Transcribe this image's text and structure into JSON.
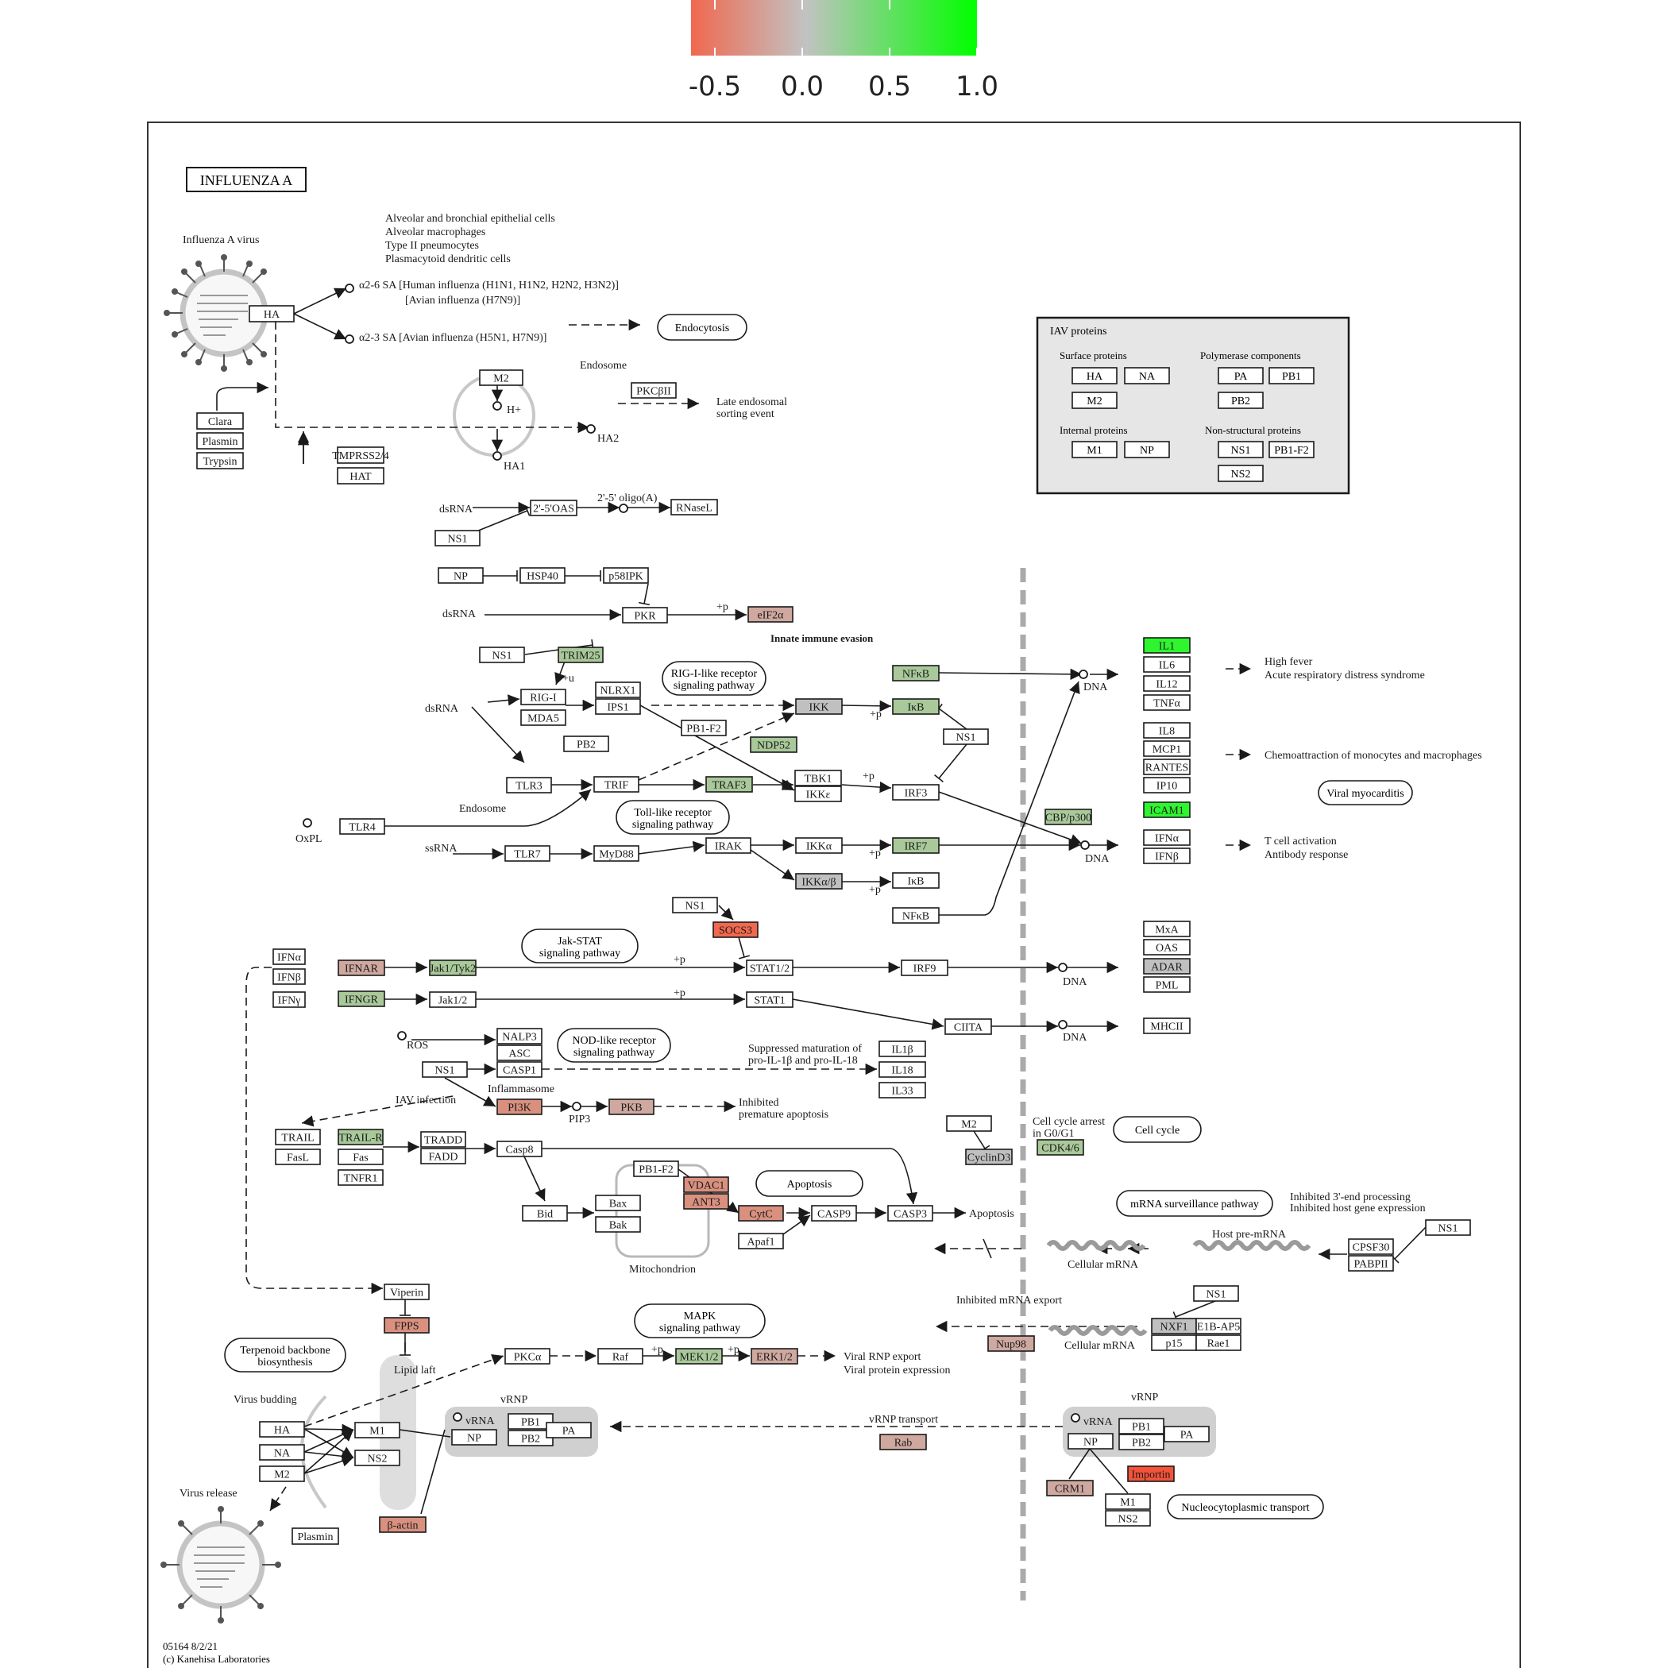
{
  "scale": {
    "ticks": [
      "-0.5",
      "0.0",
      "0.5",
      "1.0"
    ],
    "colors": {
      "low": "#f0684f",
      "mid": "#c2c2c2",
      "high": "#00ff00"
    }
  },
  "colors": {
    "white": "#ffffff",
    "gray": "#c0c0c0",
    "lightgreen": "#a9c99a",
    "green": "#2ff52f",
    "midgreen": "#7fd66b",
    "pink": "#cfa8a0",
    "salmon": "#d9907f",
    "red": "#f0684f",
    "brightred": "#f4533a",
    "panel": "#e6e6e6",
    "blob": "#d0d0d0",
    "line": "#1a1a1a"
  },
  "title": "INFLUENZA A",
  "footer": [
    "05164 8/2/21",
    "(c) Kanehisa Laboratories"
  ],
  "iav_panel": {
    "title": "IAV proteins",
    "groups": [
      {
        "label": "Surface proteins",
        "items": [
          "HA",
          "NA",
          "M2"
        ]
      },
      {
        "label": "Polymerase components",
        "items": [
          "PA",
          "PB1",
          "PB2"
        ]
      },
      {
        "label": "Internal proteins",
        "items": [
          "M1",
          "NP"
        ]
      },
      {
        "label": "Non-structural proteins",
        "items": [
          "NS1",
          "PB1-F2",
          "NS2"
        ]
      }
    ]
  },
  "pathway_labels": [
    "Endocytosis",
    "RIG-I-like receptor signaling pathway",
    "Toll-like receptor signaling pathway",
    "Jak-STAT signaling pathway",
    "NOD-like receptor signaling pathway",
    "Apoptosis",
    "Cell cycle",
    "mRNA surveillance pathway",
    "MAPK signaling pathway",
    "Terpenoid backbone biosynthesis",
    "Viral myocarditis",
    "Nucleocytoplasmic transport"
  ],
  "nodes": [
    {
      "id": "n-ha",
      "label": "HA",
      "fill": "white"
    },
    {
      "id": "n-clara",
      "label": "Clara",
      "fill": "white"
    },
    {
      "id": "n-plasmin",
      "label": "Plasmin",
      "fill": "white"
    },
    {
      "id": "n-trypsin",
      "label": "Trypsin",
      "fill": "white"
    },
    {
      "id": "n-tmprss2",
      "label": "TMPRSS2/4",
      "fill": "white"
    },
    {
      "id": "n-hat",
      "label": "HAT",
      "fill": "white"
    },
    {
      "id": "n-m2",
      "label": "M2",
      "fill": "white"
    },
    {
      "id": "n-pkcb",
      "label": "PKCβII",
      "fill": "white"
    },
    {
      "id": "n-oas",
      "label": "2'-5'OAS",
      "fill": "white"
    },
    {
      "id": "n-rnasel",
      "label": "RNaseL",
      "fill": "white"
    },
    {
      "id": "n-ns1a",
      "label": "NS1",
      "fill": "white"
    },
    {
      "id": "n-np",
      "label": "NP",
      "fill": "white"
    },
    {
      "id": "n-hsp40",
      "label": "HSP40",
      "fill": "white"
    },
    {
      "id": "n-p58",
      "label": "p58IPK",
      "fill": "white"
    },
    {
      "id": "n-pkr",
      "label": "PKR",
      "fill": "white"
    },
    {
      "id": "n-eif2a",
      "label": "eIF2α",
      "fill": "pink"
    },
    {
      "id": "n-ns1b",
      "label": "NS1",
      "fill": "white"
    },
    {
      "id": "n-trim25",
      "label": "TRIM25",
      "fill": "lightgreen"
    },
    {
      "id": "n-rigi",
      "label": "RIG-I",
      "fill": "white"
    },
    {
      "id": "n-mda5",
      "label": "MDA5",
      "fill": "white"
    },
    {
      "id": "n-nlrx1",
      "label": "NLRX1",
      "fill": "white"
    },
    {
      "id": "n-ips1",
      "label": "IPS1",
      "fill": "white"
    },
    {
      "id": "n-pb2",
      "label": "PB2",
      "fill": "white"
    },
    {
      "id": "n-pb1f2",
      "label": "PB1-F2",
      "fill": "white"
    },
    {
      "id": "n-ikk",
      "label": "IKK",
      "fill": "gray"
    },
    {
      "id": "n-nfkb1",
      "label": "NFκB",
      "fill": "lightgreen"
    },
    {
      "id": "n-ikb1",
      "label": "IκB",
      "fill": "lightgreen"
    },
    {
      "id": "n-ns1c",
      "label": "NS1",
      "fill": "white"
    },
    {
      "id": "n-ndp52",
      "label": "NDP52",
      "fill": "lightgreen"
    },
    {
      "id": "n-tlr3",
      "label": "TLR3",
      "fill": "white"
    },
    {
      "id": "n-trif",
      "label": "TRIF",
      "fill": "white"
    },
    {
      "id": "n-traf3",
      "label": "TRAF3",
      "fill": "lightgreen"
    },
    {
      "id": "n-tbk1",
      "label": "TBK1",
      "fill": "white"
    },
    {
      "id": "n-ikke",
      "label": "IKKε",
      "fill": "white"
    },
    {
      "id": "n-irf3",
      "label": "IRF3",
      "fill": "white"
    },
    {
      "id": "n-tlr4",
      "label": "TLR4",
      "fill": "white"
    },
    {
      "id": "n-tlr7",
      "label": "TLR7",
      "fill": "white"
    },
    {
      "id": "n-myd88",
      "label": "MyD88",
      "fill": "white"
    },
    {
      "id": "n-irak",
      "label": "IRAK",
      "fill": "white"
    },
    {
      "id": "n-ikka",
      "label": "IKKα",
      "fill": "white"
    },
    {
      "id": "n-irf7",
      "label": "IRF7",
      "fill": "lightgreen"
    },
    {
      "id": "n-ikkab",
      "label": "IKKα/β",
      "fill": "gray"
    },
    {
      "id": "n-ikb2",
      "label": "IκB",
      "fill": "white"
    },
    {
      "id": "n-nfkb2",
      "label": "NFκB",
      "fill": "white"
    },
    {
      "id": "n-cbp",
      "label": "CBP/p300",
      "fill": "lightgreen"
    },
    {
      "id": "n-il1",
      "label": "IL1",
      "fill": "green"
    },
    {
      "id": "n-il6",
      "label": "IL6",
      "fill": "white"
    },
    {
      "id": "n-il12",
      "label": "IL12",
      "fill": "white"
    },
    {
      "id": "n-tnfa",
      "label": "TNFα",
      "fill": "white"
    },
    {
      "id": "n-il8",
      "label": "IL8",
      "fill": "white"
    },
    {
      "id": "n-mcp1",
      "label": "MCP1",
      "fill": "white"
    },
    {
      "id": "n-rantes",
      "label": "RANTES",
      "fill": "white"
    },
    {
      "id": "n-ip10",
      "label": "IP10",
      "fill": "white"
    },
    {
      "id": "n-icam1",
      "label": "ICAM1",
      "fill": "green"
    },
    {
      "id": "n-ifna-out",
      "label": "IFNα",
      "fill": "white"
    },
    {
      "id": "n-ifnb-out",
      "label": "IFNβ",
      "fill": "white"
    },
    {
      "id": "n-ns1d",
      "label": "NS1",
      "fill": "white"
    },
    {
      "id": "n-socs3",
      "label": "SOCS3",
      "fill": "red"
    },
    {
      "id": "n-ifna",
      "label": "IFNα",
      "fill": "white"
    },
    {
      "id": "n-ifnb",
      "label": "IFNβ",
      "fill": "white"
    },
    {
      "id": "n-ifng",
      "label": "IFNγ",
      "fill": "white"
    },
    {
      "id": "n-ifnar",
      "label": "IFNAR",
      "fill": "pink"
    },
    {
      "id": "n-jak1tyk2",
      "label": "Jak1/Tyk2",
      "fill": "lightgreen"
    },
    {
      "id": "n-ifngr",
      "label": "IFNGR",
      "fill": "lightgreen"
    },
    {
      "id": "n-jak12",
      "label": "Jak1/2",
      "fill": "white"
    },
    {
      "id": "n-stat12",
      "label": "STAT1/2",
      "fill": "white"
    },
    {
      "id": "n-stat1",
      "label": "STAT1",
      "fill": "white"
    },
    {
      "id": "n-irf9",
      "label": "IRF9",
      "fill": "white"
    },
    {
      "id": "n-ciita",
      "label": "CIITA",
      "fill": "white"
    },
    {
      "id": "n-mxa",
      "label": "MxA",
      "fill": "white"
    },
    {
      "id": "n-oas2",
      "label": "OAS",
      "fill": "white"
    },
    {
      "id": "n-adar",
      "label": "ADAR",
      "fill": "gray"
    },
    {
      "id": "n-pml",
      "label": "PML",
      "fill": "white"
    },
    {
      "id": "n-mhcii",
      "label": "MHCII",
      "fill": "white"
    },
    {
      "id": "n-nalp3",
      "label": "NALP3",
      "fill": "white"
    },
    {
      "id": "n-asc",
      "label": "ASC",
      "fill": "white"
    },
    {
      "id": "n-casp1",
      "label": "CASP1",
      "fill": "white"
    },
    {
      "id": "n-ns1e",
      "label": "NS1",
      "fill": "white"
    },
    {
      "id": "n-il1b",
      "label": "IL1β",
      "fill": "white"
    },
    {
      "id": "n-il18",
      "label": "IL18",
      "fill": "white"
    },
    {
      "id": "n-il33",
      "label": "IL33",
      "fill": "white"
    },
    {
      "id": "n-pi3k",
      "label": "PI3K",
      "fill": "salmon"
    },
    {
      "id": "n-pkb",
      "label": "PKB",
      "fill": "pink"
    },
    {
      "id": "n-trail",
      "label": "TRAIL",
      "fill": "white"
    },
    {
      "id": "n-fasl",
      "label": "FasL",
      "fill": "white"
    },
    {
      "id": "n-trailr",
      "label": "TRAIL-R",
      "fill": "lightgreen"
    },
    {
      "id": "n-fas",
      "label": "Fas",
      "fill": "white"
    },
    {
      "id": "n-tnfr1",
      "label": "TNFR1",
      "fill": "white"
    },
    {
      "id": "n-tradd",
      "label": "TRADD",
      "fill": "white"
    },
    {
      "id": "n-fadd",
      "label": "FADD",
      "fill": "white"
    },
    {
      "id": "n-casp8",
      "label": "Casp8",
      "fill": "white"
    },
    {
      "id": "n-bid",
      "label": "Bid",
      "fill": "white"
    },
    {
      "id": "n-bax",
      "label": "Bax",
      "fill": "white"
    },
    {
      "id": "n-bak",
      "label": "Bak",
      "fill": "white"
    },
    {
      "id": "n-pb1f2b",
      "label": "PB1-F2",
      "fill": "white"
    },
    {
      "id": "n-vdac1",
      "label": "VDAC1",
      "fill": "salmon"
    },
    {
      "id": "n-ant3",
      "label": "ANT3",
      "fill": "salmon"
    },
    {
      "id": "n-cytc",
      "label": "CytC",
      "fill": "salmon"
    },
    {
      "id": "n-apaf1",
      "label": "Apaf1",
      "fill": "white"
    },
    {
      "id": "n-casp9",
      "label": "CASP9",
      "fill": "white"
    },
    {
      "id": "n-casp3",
      "label": "CASP3",
      "fill": "white"
    },
    {
      "id": "n-m2b",
      "label": "M2",
      "fill": "white"
    },
    {
      "id": "n-cyclind3",
      "label": "CyclinD3",
      "fill": "gray"
    },
    {
      "id": "n-cdk46",
      "label": "CDK4/6",
      "fill": "lightgreen"
    },
    {
      "id": "n-ns1f",
      "label": "NS1",
      "fill": "white"
    },
    {
      "id": "n-cpsf30",
      "label": "CPSF30",
      "fill": "white"
    },
    {
      "id": "n-pabpii",
      "label": "PABPII",
      "fill": "white"
    },
    {
      "id": "n-viperin",
      "label": "Viperin",
      "fill": "white"
    },
    {
      "id": "n-fpps",
      "label": "FPPS",
      "fill": "salmon"
    },
    {
      "id": "n-ns1g",
      "label": "NS1",
      "fill": "white"
    },
    {
      "id": "n-nxf1",
      "label": "NXF1",
      "fill": "gray"
    },
    {
      "id": "n-e1bap5",
      "label": "E1B-AP5",
      "fill": "white"
    },
    {
      "id": "n-p15",
      "label": "p15",
      "fill": "white"
    },
    {
      "id": "n-rae1",
      "label": "Rae1",
      "fill": "white"
    },
    {
      "id": "n-nup98",
      "label": "Nup98",
      "fill": "pink"
    },
    {
      "id": "n-pkca",
      "label": "PKCα",
      "fill": "white"
    },
    {
      "id": "n-raf",
      "label": "Raf",
      "fill": "white"
    },
    {
      "id": "n-mek12",
      "label": "MEK1/2",
      "fill": "lightgreen"
    },
    {
      "id": "n-erk12",
      "label": "ERK1/2",
      "fill": "pink"
    },
    {
      "id": "n-ha2",
      "label": "HA",
      "fill": "white"
    },
    {
      "id": "n-na2",
      "label": "NA",
      "fill": "white"
    },
    {
      "id": "n-m2c",
      "label": "M2",
      "fill": "white"
    },
    {
      "id": "n-m1",
      "label": "M1",
      "fill": "white"
    },
    {
      "id": "n-ns2",
      "label": "NS2",
      "fill": "white"
    },
    {
      "id": "n-vnp",
      "label": "NP",
      "fill": "white"
    },
    {
      "id": "n-vpb1",
      "label": "PB1",
      "fill": "white"
    },
    {
      "id": "n-vpb2",
      "label": "PB2",
      "fill": "white"
    },
    {
      "id": "n-vpa",
      "label": "PA",
      "fill": "white"
    },
    {
      "id": "n-rab",
      "label": "Rab",
      "fill": "pink"
    },
    {
      "id": "n-vnp2",
      "label": "NP",
      "fill": "white"
    },
    {
      "id": "n-vpb1b",
      "label": "PB1",
      "fill": "white"
    },
    {
      "id": "n-vpb2b",
      "label": "PB2",
      "fill": "white"
    },
    {
      "id": "n-vpa2",
      "label": "PA",
      "fill": "white"
    },
    {
      "id": "n-crm1",
      "label": "CRM1",
      "fill": "pink"
    },
    {
      "id": "n-importin",
      "label": "Importin",
      "fill": "brightred"
    },
    {
      "id": "n-m1b",
      "label": "M1",
      "fill": "white"
    },
    {
      "id": "n-ns2b",
      "label": "NS2",
      "fill": "white"
    },
    {
      "id": "n-plasmin2",
      "label": "Plasmin",
      "fill": "white"
    },
    {
      "id": "n-bactin",
      "label": "β-actin",
      "fill": "salmon"
    }
  ],
  "texts": [
    {
      "id": "t-virus",
      "text": "Influenza A virus"
    },
    {
      "id": "t-cells1",
      "text": "Alveolar and bronchial epithelial cells"
    },
    {
      "id": "t-cells2",
      "text": "Alveolar macrophages"
    },
    {
      "id": "t-cells3",
      "text": "Type II pneumocytes"
    },
    {
      "id": "t-cells4",
      "text": "Plasmacytoid dendritic cells"
    },
    {
      "id": "t-a26",
      "text": "α2-6 SA  [Human influenza (H1N1, H1N2, H2N2, H3N2)]"
    },
    {
      "id": "t-a26b",
      "text": "[Avian influenza (H7N9)]"
    },
    {
      "id": "t-a23",
      "text": "α2-3 SA  [Avian influenza (H5N1, H7N9)]"
    },
    {
      "id": "t-endosome",
      "text": "Endosome"
    },
    {
      "id": "t-hplus",
      "text": "H+"
    },
    {
      "id": "t-ha1",
      "text": "HA1"
    },
    {
      "id": "t-ha2",
      "text": "HA2"
    },
    {
      "id": "t-late1",
      "text": "Late endosomal"
    },
    {
      "id": "t-late2",
      "text": "sorting event"
    },
    {
      "id": "t-dsrna1",
      "text": "dsRNA"
    },
    {
      "id": "t-oligo",
      "text": "2'-5' oligo(A)"
    },
    {
      "id": "t-dsrna2",
      "text": "dsRNA"
    },
    {
      "id": "t-p1",
      "text": "+p"
    },
    {
      "id": "t-innate",
      "text": "Innate immune evasion"
    },
    {
      "id": "t-u",
      "text": "+u"
    },
    {
      "id": "t-dsrna3",
      "text": "dsRNA"
    },
    {
      "id": "t-p2",
      "text": "+p"
    },
    {
      "id": "t-p3",
      "text": "+p"
    },
    {
      "id": "t-dna1",
      "text": "DNA"
    },
    {
      "id": "t-endosome2",
      "text": "Endosome"
    },
    {
      "id": "t-oxpl",
      "text": "OxPL"
    },
    {
      "id": "t-ssrna",
      "text": "ssRNA"
    },
    {
      "id": "t-p4",
      "text": "+p"
    },
    {
      "id": "t-p5",
      "text": "+p"
    },
    {
      "id": "t-dna2",
      "text": "DNA"
    },
    {
      "id": "t-fever1",
      "text": "High fever"
    },
    {
      "id": "t-fever2",
      "text": "Acute respiratory distress syndrome"
    },
    {
      "id": "t-chemo",
      "text": "Chemoattraction of monocytes and macrophages"
    },
    {
      "id": "t-tcell1",
      "text": "T cell activation"
    },
    {
      "id": "t-tcell2",
      "text": "Antibody response"
    },
    {
      "id": "t-p6",
      "text": "+p"
    },
    {
      "id": "t-p7",
      "text": "+p"
    },
    {
      "id": "t-dna3",
      "text": "DNA"
    },
    {
      "id": "t-dna4",
      "text": "DNA"
    },
    {
      "id": "t-ros",
      "text": "ROS"
    },
    {
      "id": "t-supp1",
      "text": "Suppressed maturation of"
    },
    {
      "id": "t-supp2",
      "text": "pro-IL-1β and pro-IL-18"
    },
    {
      "id": "t-inflam",
      "text": "Inflammasome"
    },
    {
      "id": "t-iavinf",
      "text": "IAV infection"
    },
    {
      "id": "t-pip3",
      "text": "PIP3"
    },
    {
      "id": "t-inhib1",
      "text": "Inhibited"
    },
    {
      "id": "t-inhib2",
      "text": "premature apoptosis"
    },
    {
      "id": "t-cca1",
      "text": "Cell cycle arrest"
    },
    {
      "id": "t-cca2",
      "text": "in G0/G1"
    },
    {
      "id": "t-apop2",
      "text": "Apoptosis"
    },
    {
      "id": "t-mito",
      "text": "Mitochondrion"
    },
    {
      "id": "t-inh3a",
      "text": "Inhibited 3'-end processing"
    },
    {
      "id": "t-inh3b",
      "text": "Inhibited host gene expression"
    },
    {
      "id": "t-hostpre",
      "text": "Host pre-mRNA"
    },
    {
      "id": "t-cellmrna1",
      "text": "Cellular mRNA"
    },
    {
      "id": "t-inhexp",
      "text": "Inhibited mRNA export"
    },
    {
      "id": "t-cellmrna2",
      "text": "Cellular mRNA"
    },
    {
      "id": "t-lipid",
      "text": "Lipid laft"
    },
    {
      "id": "t-p8",
      "text": "+p"
    },
    {
      "id": "t-p9",
      "text": "+p"
    },
    {
      "id": "t-vrnpexp1",
      "text": "Viral RNP export"
    },
    {
      "id": "t-vrnpexp2",
      "text": "Viral protein expression"
    },
    {
      "id": "t-budding",
      "text": "Virus budding"
    },
    {
      "id": "t-vrnp1",
      "text": "vRNP"
    },
    {
      "id": "t-vrna1",
      "text": "vRNA"
    },
    {
      "id": "t-transport",
      "text": "vRNP transport"
    },
    {
      "id": "t-vrnp2",
      "text": "vRNP"
    },
    {
      "id": "t-vrna2",
      "text": "vRNA"
    },
    {
      "id": "t-release",
      "text": "Virus release"
    }
  ]
}
